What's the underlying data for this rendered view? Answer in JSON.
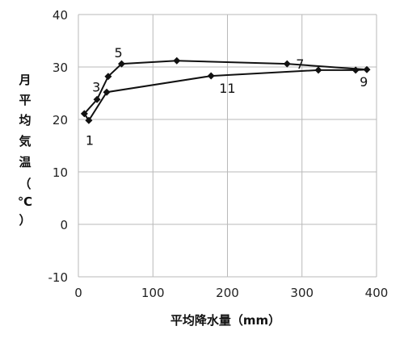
{
  "chart_data": {
    "type": "scatter",
    "xlabel": "平均降水量（mm）",
    "ylabel": [
      "月",
      "平",
      "均",
      "気",
      "温",
      "（",
      "℃",
      "）"
    ],
    "xlim": [
      0,
      400
    ],
    "ylim": [
      -10,
      40
    ],
    "xticks": [
      "0",
      "100",
      "200",
      "300",
      "400"
    ],
    "yticks": [
      "-10",
      "0",
      "10",
      "20",
      "30",
      "40"
    ],
    "grid": true,
    "legend": "none",
    "connected": true,
    "series": [
      {
        "points": [
          {
            "month": 1,
            "x": 14,
            "y": 19.8
          },
          {
            "month": 2,
            "x": 8,
            "y": 21.1
          },
          {
            "month": 3,
            "x": 25,
            "y": 23.8
          },
          {
            "month": 4,
            "x": 40,
            "y": 28.2
          },
          {
            "month": 5,
            "x": 58,
            "y": 30.6
          },
          {
            "month": 6,
            "x": 132,
            "y": 31.2
          },
          {
            "month": 7,
            "x": 280,
            "y": 30.6
          },
          {
            "month": 8,
            "x": 387,
            "y": 29.5
          },
          {
            "month": 9,
            "x": 372,
            "y": 29.4
          },
          {
            "month": 10,
            "x": 322,
            "y": 29.4
          },
          {
            "month": 11,
            "x": 178,
            "y": 28.3
          },
          {
            "month": 12,
            "x": 38,
            "y": 25.2
          }
        ]
      }
    ],
    "annotations": [
      {
        "text": "1",
        "month": 1
      },
      {
        "text": "3",
        "month": 3
      },
      {
        "text": "5",
        "month": 5
      },
      {
        "text": "7",
        "month": 7
      },
      {
        "text": "9",
        "month": 9
      },
      {
        "text": "11",
        "month": 11
      }
    ]
  }
}
